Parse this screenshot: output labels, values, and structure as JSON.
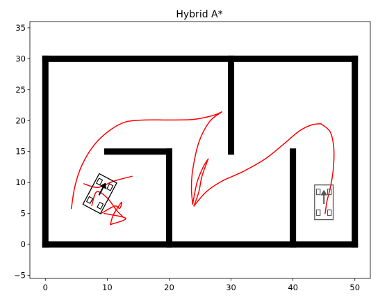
{
  "chart_data": {
    "type": "line",
    "title": "Hybrid A*",
    "xlabel": "",
    "ylabel": "",
    "xlim": [
      -2.5,
      52.5
    ],
    "ylim": [
      -5.5,
      36.0
    ],
    "xticks": [
      0,
      10,
      20,
      30,
      40,
      50
    ],
    "yticks": [
      -5,
      0,
      5,
      10,
      15,
      20,
      25,
      30,
      35
    ],
    "grid": false,
    "colors": {
      "obstacle": "#000000",
      "path": "#ff0000",
      "start_car": "#000000",
      "goal_car": "#555555"
    },
    "obstacles": [
      {
        "x": [
          0,
          50
        ],
        "y": [
          0,
          0
        ]
      },
      {
        "x": [
          0,
          50
        ],
        "y": [
          30,
          30
        ]
      },
      {
        "x": [
          0,
          0
        ],
        "y": [
          0,
          30
        ]
      },
      {
        "x": [
          50,
          50
        ],
        "y": [
          0,
          30
        ]
      },
      {
        "x": [
          10,
          20
        ],
        "y": [
          15,
          15
        ]
      },
      {
        "x": [
          20,
          20
        ],
        "y": [
          0,
          15
        ]
      },
      {
        "x": [
          30,
          30
        ],
        "y": [
          15,
          30
        ]
      },
      {
        "x": [
          40,
          40
        ],
        "y": [
          0,
          15
        ]
      }
    ],
    "series": [
      {
        "x": [
          4.2,
          4.8,
          6,
          8,
          10.5,
          13,
          16,
          20,
          24,
          27,
          28.5
        ],
        "y": [
          5.8,
          9.5,
          13,
          16.2,
          18.5,
          19.8,
          20.1,
          20.1,
          20.2,
          20.8,
          21.4
        ]
      },
      {
        "x": [
          28.5,
          26.5,
          24.8,
          23.8,
          23.6,
          23.8
        ],
        "y": [
          21.4,
          19.8,
          16.5,
          12,
          9,
          6.5
        ]
      },
      {
        "x": [
          23.8,
          24.5,
          25.5,
          26.3
        ],
        "y": [
          6.5,
          10,
          12.5,
          13.8
        ]
      },
      {
        "x": [
          26.3,
          25.3,
          24.8,
          24.0
        ],
        "y": [
          13.8,
          11,
          8.5,
          6.2
        ]
      },
      {
        "x": [
          24.0,
          26,
          28.5,
          32,
          35.5,
          38.5,
          41,
          43,
          44.5
        ],
        "y": [
          6.2,
          8.5,
          10.2,
          11.8,
          13.8,
          16.2,
          18.3,
          19.3,
          19.5
        ]
      },
      {
        "x": [
          44.5,
          46,
          46.6,
          46.5,
          46.0,
          45.5,
          45.2
        ],
        "y": [
          19.5,
          18.2,
          15.5,
          12,
          9,
          7,
          5
        ]
      },
      {
        "x": [
          6.2,
          8.5,
          11,
          14.0
        ],
        "y": [
          9.8,
          9.2,
          10.2,
          11.0
        ]
      },
      {
        "x": [
          7.5,
          8.3,
          10,
          11.5,
          12.5
        ],
        "y": [
          6.3,
          8.5,
          7.5,
          5.5,
          4.5
        ]
      },
      {
        "x": [
          9,
          11.2,
          12,
          12.3,
          11.0,
          10.5
        ],
        "y": [
          5,
          6.2,
          5.8,
          6.8,
          4.8,
          3.2
        ]
      },
      {
        "x": [
          10.5,
          13.0,
          9.5
        ],
        "y": [
          3.2,
          4.2,
          5.0
        ]
      }
    ],
    "markers": [
      {
        "name": "start",
        "x": 8.8,
        "y": 8.2,
        "angle_deg": 62,
        "length": 5.6,
        "width": 3.2
      },
      {
        "name": "goal",
        "x": 45.0,
        "y": 6.8,
        "angle_deg": 90,
        "length": 5.6,
        "width": 3.0
      }
    ]
  }
}
